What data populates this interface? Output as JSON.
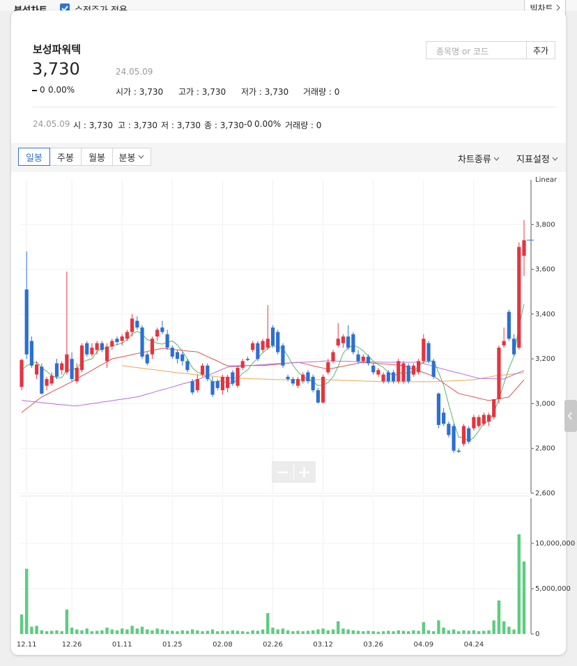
{
  "top_bar": {
    "title": "분석차트",
    "checkbox_label": "수정주가 적용",
    "checked": true,
    "big_chart_button": "빅차트"
  },
  "stock": {
    "name": "보성파워텍",
    "price": "3,730",
    "date": "24.05.09",
    "change": "0",
    "change_rate": "0.00%",
    "stats": [
      "시가 : 3,730",
      "고가 : 3,730",
      "저가 : 3,730",
      "거래량 : 0"
    ]
  },
  "search": {
    "placeholder": "종목명 or 코드",
    "button": "추가"
  },
  "info_line": {
    "date": "24.05.09",
    "items": [
      "시 : 3,730",
      "고 : 3,730",
      "저 : 3,730",
      "종 : 3,730",
      "-0",
      "0.00%",
      "거래량 : 0"
    ]
  },
  "toolbar": {
    "tabs": [
      "일봉",
      "주봉",
      "월봉",
      "분봉"
    ],
    "active_tab": "일봉",
    "menus": [
      "차트종류",
      "지표설정"
    ]
  },
  "chart_data": [
    {
      "type": "candlestick",
      "scale_label": "Linear",
      "up_color": "#e4343f",
      "down_color": "#2c6fd4",
      "grid": true,
      "ylim": [
        2600,
        4000
      ],
      "yticks": [
        {
          "value": 2600,
          "label": "2,600"
        },
        {
          "value": 2800,
          "label": "2,800"
        },
        {
          "value": 3000,
          "label": "3,000"
        },
        {
          "value": 3200,
          "label": "3,200"
        },
        {
          "value": 3400,
          "label": "3,400"
        },
        {
          "value": 3600,
          "label": "3,600"
        },
        {
          "value": 3800,
          "label": "3,800"
        }
      ],
      "open": [
        3075,
        3510,
        3280,
        3130,
        3165,
        3080,
        3090,
        3180,
        3150,
        3140,
        3200,
        3100,
        3150,
        3270,
        3220,
        3240,
        3270,
        3190,
        3255,
        3290,
        3280,
        3290,
        3320,
        3370,
        3340,
        3220,
        3220,
        3300,
        3340,
        3310,
        3250,
        3230,
        3220,
        3190,
        3100,
        3060,
        3130,
        3170,
        3100,
        3100,
        3060,
        3070,
        3140,
        3080,
        3160,
        3200,
        3240,
        3270,
        3240,
        3250,
        3340,
        3320,
        3260,
        3120,
        3110,
        3080,
        3100,
        3140,
        3120,
        3060,
        3005,
        3140,
        3190,
        3260,
        3270,
        3300,
        3310,
        3220,
        3190,
        3210,
        3170,
        3130,
        3100,
        3140,
        3140,
        3100,
        3100,
        3170,
        3130,
        3140,
        3190,
        3270,
        3190,
        3045,
        2960,
        2910,
        2900,
        2790,
        2820,
        2890,
        2890,
        2900,
        2910,
        2920,
        2940,
        3020,
        3260,
        3410,
        3290,
        3250,
        3660
      ],
      "high": [
        3200,
        3680,
        3300,
        3190,
        3180,
        3120,
        3140,
        3200,
        3190,
        3590,
        3230,
        3180,
        3270,
        3280,
        3270,
        3280,
        3280,
        3270,
        3290,
        3300,
        3310,
        3330,
        3400,
        3390,
        3350,
        3230,
        3300,
        3340,
        3370,
        3330,
        3260,
        3240,
        3230,
        3200,
        3110,
        3130,
        3180,
        3180,
        3120,
        3110,
        3130,
        3130,
        3150,
        3170,
        3200,
        3210,
        3280,
        3280,
        3290,
        3440,
        3350,
        3330,
        3270,
        3130,
        3120,
        3120,
        3140,
        3150,
        3130,
        3070,
        3130,
        3200,
        3240,
        3360,
        3310,
        3350,
        3320,
        3240,
        3220,
        3220,
        3180,
        3160,
        3140,
        3150,
        3150,
        3200,
        3190,
        3180,
        3180,
        3200,
        3310,
        3280,
        3200,
        3050,
        2980,
        2920,
        2910,
        2800,
        2910,
        2900,
        2950,
        2950,
        2960,
        2960,
        3020,
        3260,
        3340,
        3420,
        3310,
        3720,
        3820
      ],
      "low": [
        3060,
        3200,
        3160,
        3110,
        3040,
        3060,
        3080,
        3110,
        3130,
        3130,
        3100,
        3090,
        3140,
        3210,
        3210,
        3220,
        3230,
        3160,
        3240,
        3260,
        3260,
        3280,
        3300,
        3330,
        3200,
        3170,
        3200,
        3280,
        3310,
        3240,
        3200,
        3180,
        3170,
        3140,
        3040,
        3050,
        3120,
        3100,
        3030,
        3060,
        3040,
        3050,
        3080,
        3070,
        3150,
        3190,
        3230,
        3190,
        3230,
        3240,
        3250,
        3220,
        3160,
        3100,
        3080,
        3070,
        3090,
        3090,
        3050,
        3000,
        3000,
        3130,
        3180,
        3250,
        3250,
        3240,
        3220,
        3180,
        3180,
        3170,
        3130,
        3120,
        3090,
        3090,
        3090,
        3090,
        3090,
        3090,
        3120,
        3130,
        3180,
        3180,
        3110,
        2890,
        2900,
        2850,
        2780,
        2780,
        2810,
        2820,
        2880,
        2890,
        2900,
        2900,
        2930,
        3000,
        3250,
        3280,
        3210,
        3240,
        3570
      ],
      "close": [
        3195,
        3220,
        3170,
        3175,
        3045,
        3110,
        3125,
        3120,
        3180,
        3220,
        3110,
        3160,
        3260,
        3220,
        3250,
        3270,
        3240,
        3255,
        3280,
        3275,
        3300,
        3320,
        3380,
        3340,
        3210,
        3180,
        3290,
        3330,
        3320,
        3250,
        3210,
        3200,
        3190,
        3150,
        3050,
        3110,
        3170,
        3110,
        3040,
        3070,
        3120,
        3120,
        3090,
        3160,
        3190,
        3195,
        3270,
        3200,
        3280,
        3290,
        3260,
        3230,
        3170,
        3110,
        3090,
        3110,
        3130,
        3100,
        3060,
        3005,
        3120,
        3185,
        3230,
        3290,
        3300,
        3250,
        3230,
        3190,
        3210,
        3180,
        3140,
        3150,
        3130,
        3100,
        3100,
        3190,
        3180,
        3100,
        3170,
        3190,
        3290,
        3190,
        3120,
        2905,
        2910,
        2860,
        2790,
        2785,
        2900,
        2830,
        2940,
        2940,
        2950,
        2950,
        3020,
        3250,
        3280,
        3290,
        3220,
        3700,
        3730
      ],
      "series": [
        {
          "color": "#52b86a",
          "values": [
            3150,
            3170,
            3180,
            3185,
            3161,
            3144,
            3125,
            3115,
            3116,
            3151,
            3151,
            3158,
            3186,
            3194,
            3200,
            3232,
            3248,
            3247,
            3259,
            3264,
            3270,
            3286,
            3311,
            3323,
            3310,
            3286,
            3280,
            3270,
            3266,
            3274,
            3280,
            3262,
            3234,
            3200,
            3160,
            3140,
            3134,
            3118,
            3096,
            3100,
            3102,
            3092,
            3088,
            3112,
            3136,
            3151,
            3181,
            3203,
            3227,
            3247,
            3260,
            3252,
            3246,
            3212,
            3172,
            3142,
            3122,
            3108,
            3098,
            3081,
            3083,
            3094,
            3120,
            3166,
            3225,
            3251,
            3260,
            3252,
            3236,
            3212,
            3190,
            3174,
            3162,
            3140,
            3124,
            3134,
            3140,
            3134,
            3148,
            3166,
            3186,
            3188,
            3192,
            3139,
            3083,
            2997,
            2917,
            2850,
            2849,
            2833,
            2849,
            2879,
            2912,
            2922,
            2960,
            3022,
            3090,
            3158,
            3212,
            3348,
            3444
          ]
        },
        {
          "color": "#d9534f",
          "values": [
            2960,
            2978,
            2995,
            3013,
            3030,
            3041,
            3053,
            3064,
            3075,
            3087,
            3098,
            3111,
            3124,
            3136,
            3149,
            3162,
            3175,
            3187,
            3200,
            3205,
            3209,
            3214,
            3219,
            3224,
            3228,
            3233,
            3238,
            3242,
            3247,
            3245,
            3242,
            3240,
            3238,
            3235,
            3233,
            3231,
            3221,
            3210,
            3200,
            3190,
            3179,
            3169,
            3169,
            3169,
            3170,
            3170,
            3170,
            3170,
            3170,
            3172,
            3174,
            3176,
            3179,
            3181,
            3183,
            3185,
            3180,
            3175,
            3169,
            3164,
            3159,
            3154,
            3158,
            3163,
            3167,
            3172,
            3176,
            3181,
            3185,
            3183,
            3181,
            3179,
            3177,
            3176,
            3174,
            3172,
            3170,
            3162,
            3154,
            3146,
            3139,
            3131,
            3123,
            3107,
            3092,
            3076,
            3061,
            3045,
            3040,
            3035,
            3030,
            3024,
            3019,
            3014,
            3018,
            3022,
            3026,
            3030,
            3056,
            3081,
            3107
          ]
        },
        {
          "color": "#e9a94b",
          "values": [
            null,
            null,
            null,
            null,
            null,
            null,
            null,
            null,
            null,
            null,
            null,
            null,
            null,
            null,
            null,
            null,
            null,
            null,
            null,
            null,
            3170,
            3167,
            3164,
            3161,
            3158,
            3155,
            3153,
            3150,
            3147,
            3144,
            3141,
            3138,
            3136,
            3134,
            3131,
            3129,
            3127,
            3125,
            3123,
            3120,
            3118,
            3116,
            3115,
            3114,
            3113,
            3112,
            3111,
            3111,
            3110,
            3109,
            3108,
            3107,
            3107,
            3107,
            3107,
            3107,
            3107,
            3107,
            3107,
            3107,
            3107,
            3107,
            3106,
            3105,
            3104,
            3104,
            3103,
            3102,
            3101,
            3100,
            3100,
            3099,
            3098,
            3098,
            3098,
            3098,
            3098,
            3098,
            3098,
            3098,
            3098,
            3098,
            3098,
            3099,
            3100,
            3101,
            3102,
            3103,
            3104,
            3105,
            3107,
            3111,
            3115,
            3119,
            3123,
            3126,
            3128,
            3131,
            3133,
            3136,
            3138
          ]
        },
        {
          "color": "#b46de0",
          "values": [
            3015,
            3012,
            3010,
            3007,
            3005,
            3002,
            3000,
            2997,
            2995,
            2993,
            2991,
            2990,
            2993,
            2997,
            3000,
            3003,
            3007,
            3010,
            3013,
            3017,
            3020,
            3023,
            3027,
            3030,
            3036,
            3043,
            3049,
            3056,
            3062,
            3068,
            3075,
            3081,
            3088,
            3094,
            3100,
            3107,
            3116,
            3126,
            3135,
            3144,
            3154,
            3163,
            3165,
            3166,
            3168,
            3170,
            3171,
            3173,
            3174,
            3176,
            3178,
            3179,
            3180,
            3181,
            3182,
            3184,
            3185,
            3186,
            3187,
            3188,
            3190,
            3191,
            3190,
            3190,
            3189,
            3189,
            3188,
            3188,
            3187,
            3187,
            3186,
            3186,
            3185,
            3185,
            3185,
            3185,
            3185,
            3185,
            3185,
            3185,
            3179,
            3173,
            3166,
            3160,
            3154,
            3148,
            3142,
            3137,
            3131,
            3125,
            3119,
            3113,
            3112,
            3112,
            3111,
            3111,
            3110,
            3120,
            3130,
            3139,
            3148
          ]
        }
      ]
    },
    {
      "type": "bar",
      "color": "#5ccd7f",
      "grid": true,
      "ylim": [
        0,
        15000000
      ],
      "yticks": [
        0,
        {
          "value": 5000000,
          "label": "5,000,000"
        },
        {
          "value": 10000000,
          "label": "10,000,000"
        }
      ],
      "categories": [
        null,
        "12.11",
        null,
        null,
        null,
        null,
        null,
        null,
        null,
        null,
        "12.26",
        null,
        null,
        null,
        null,
        null,
        null,
        null,
        null,
        null,
        "01.11",
        null,
        null,
        null,
        null,
        null,
        null,
        null,
        null,
        null,
        "01.25",
        null,
        null,
        null,
        null,
        null,
        null,
        null,
        null,
        null,
        "02.08",
        null,
        null,
        null,
        null,
        null,
        null,
        null,
        null,
        null,
        "02.26",
        null,
        null,
        null,
        null,
        null,
        null,
        null,
        null,
        null,
        "03.12",
        null,
        null,
        null,
        null,
        null,
        null,
        null,
        null,
        null,
        "03.26",
        null,
        null,
        null,
        null,
        null,
        null,
        null,
        null,
        null,
        "04.09",
        null,
        null,
        null,
        null,
        null,
        null,
        null,
        null,
        null,
        "04.24",
        null,
        null,
        null,
        null,
        null,
        null,
        null,
        null,
        null,
        null
      ],
      "values": [
        2150000,
        7200000,
        800000,
        900000,
        400000,
        300000,
        350000,
        400000,
        300000,
        2700000,
        700000,
        500000,
        400000,
        600000,
        300000,
        350000,
        400000,
        700000,
        500000,
        400000,
        600000,
        500000,
        900000,
        600000,
        800000,
        500000,
        400000,
        600000,
        500000,
        400000,
        350000,
        300000,
        400000,
        350000,
        500000,
        400000,
        300000,
        350000,
        500000,
        300000,
        350000,
        300000,
        400000,
        350000,
        300000,
        250000,
        400000,
        350000,
        500000,
        2300000,
        700000,
        500000,
        600000,
        400000,
        300000,
        350000,
        300000,
        350000,
        400000,
        500000,
        600000,
        400000,
        500000,
        1400000,
        600000,
        500000,
        400000,
        350000,
        300000,
        350000,
        300000,
        250000,
        300000,
        350000,
        300000,
        400000,
        350000,
        300000,
        400000,
        350000,
        1300000,
        400000,
        300000,
        1500000,
        700000,
        400000,
        500000,
        300000,
        400000,
        350000,
        400000,
        300000,
        350000,
        400000,
        1500000,
        3700000,
        1400000,
        800000,
        500000,
        11000000,
        8000000
      ]
    }
  ]
}
